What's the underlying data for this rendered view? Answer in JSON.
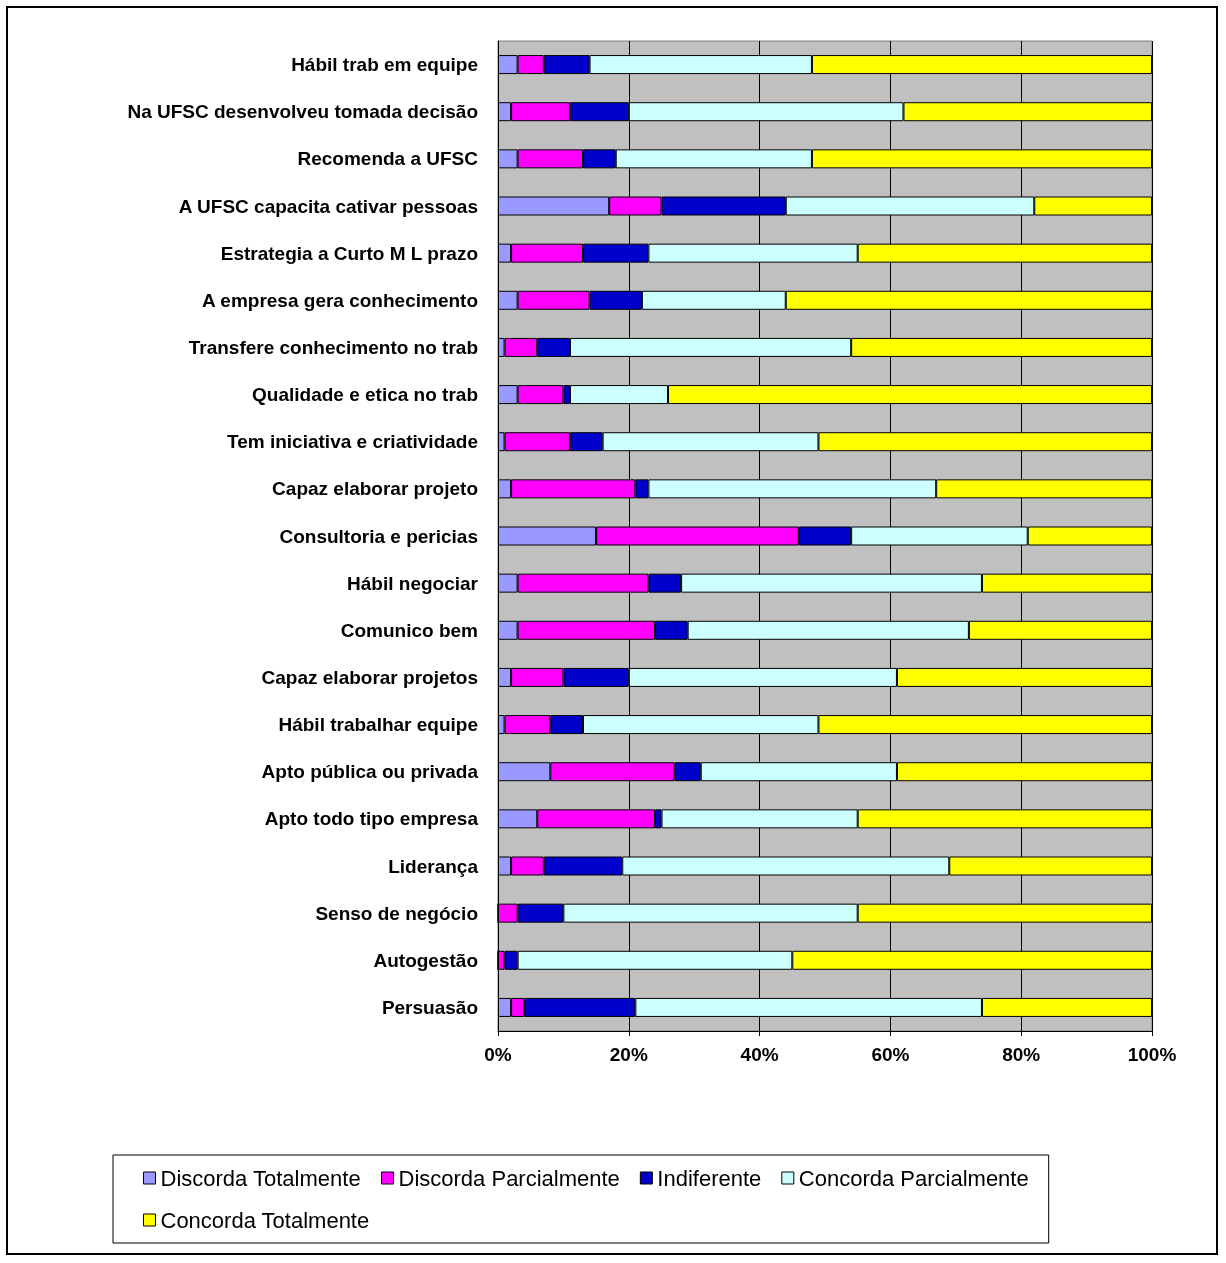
{
  "chart_data": {
    "type": "bar",
    "orientation": "horizontal",
    "stacked": true,
    "categories": [
      "Hábil trab em equipe",
      "Na UFSC desenvolveu tomada decisão",
      "Recomenda a UFSC",
      "A UFSC capacita cativar pessoas",
      "Estrategia a Curto M L prazo",
      "A empresa gera conhecimento",
      "Transfere conhecimento no trab",
      "Qualidade e etica no trab",
      "Tem iniciativa e criatividade",
      "Capaz elaborar projeto",
      "Consultoria e pericias",
      "Hábil negociar",
      "Comunico bem",
      "Capaz elaborar projetos",
      "Hábil trabalhar equipe",
      "Apto pública ou privada",
      "Apto todo tipo empresa",
      "Liderança",
      "Senso de negócio",
      "Autogestão",
      "Persuasão"
    ],
    "series": [
      {
        "name": "Discorda Totalmente",
        "color": "#9999ff",
        "values": [
          3,
          2,
          3,
          17,
          2,
          3,
          1,
          3,
          1,
          2,
          15,
          3,
          3,
          2,
          1,
          8,
          6,
          2,
          0,
          0,
          2
        ]
      },
      {
        "name": "Discorda Parcialmente",
        "color": "#ff00ff",
        "values": [
          4,
          9,
          10,
          8,
          11,
          11,
          5,
          7,
          10,
          19,
          31,
          20,
          21,
          8,
          7,
          19,
          18,
          5,
          3,
          1,
          2
        ]
      },
      {
        "name": "Indiferente",
        "color": "#0000cc",
        "values": [
          7,
          9,
          5,
          19,
          10,
          8,
          5,
          1,
          5,
          2,
          8,
          5,
          5,
          10,
          5,
          4,
          1,
          12,
          7,
          2,
          17
        ]
      },
      {
        "name": "Concorda Parcialmente",
        "color": "#ccffff",
        "values": [
          34,
          42,
          30,
          38,
          32,
          22,
          43,
          15,
          33,
          44,
          27,
          46,
          43,
          41,
          36,
          30,
          30,
          50,
          45,
          42,
          53
        ]
      },
      {
        "name": "Concorda Totalmente",
        "color": "#ffff00",
        "values": [
          52,
          38,
          52,
          18,
          45,
          56,
          46,
          74,
          51,
          33,
          19,
          26,
          28,
          39,
          51,
          39,
          45,
          31,
          45,
          55,
          26
        ]
      }
    ],
    "xlim": [
      0,
      100
    ],
    "xticks": [
      {
        "value": 0,
        "label": "0%"
      },
      {
        "value": 20,
        "label": "20%"
      },
      {
        "value": 40,
        "label": "40%"
      },
      {
        "value": 60,
        "label": "60%"
      },
      {
        "value": 80,
        "label": "80%"
      },
      {
        "value": 100,
        "label": "100%"
      }
    ],
    "grid": "x",
    "legend": "bottom"
  }
}
